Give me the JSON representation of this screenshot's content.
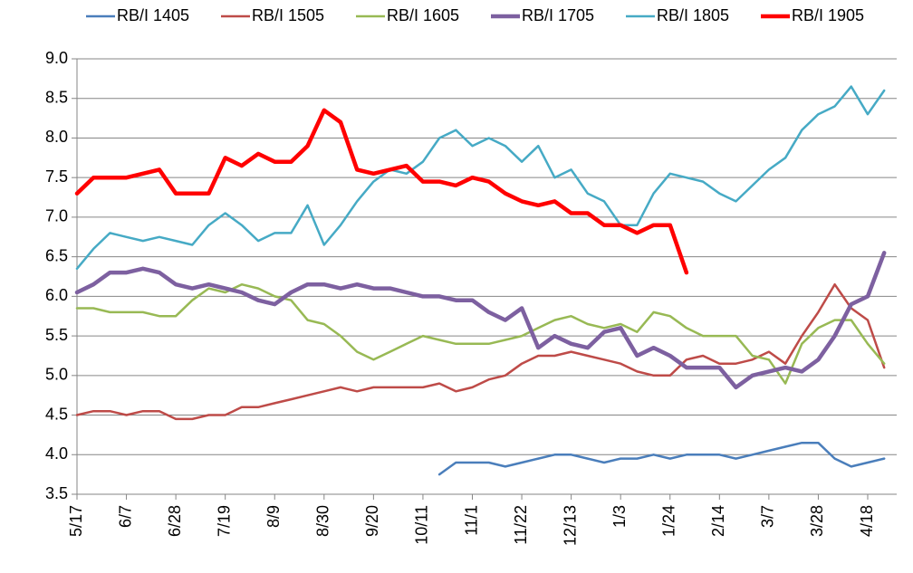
{
  "chart_data": {
    "type": "line",
    "categories": [
      "5/17",
      null,
      null,
      "6/7",
      null,
      null,
      "6/28",
      null,
      null,
      "7/19",
      null,
      null,
      "8/9",
      null,
      null,
      "8/30",
      null,
      null,
      "9/20",
      null,
      null,
      "10/11",
      null,
      null,
      "11/1",
      null,
      null,
      "11/22",
      null,
      null,
      "12/13",
      null,
      null,
      "1/3",
      null,
      null,
      "1/24",
      null,
      null,
      "2/14",
      null,
      null,
      "3/7",
      null,
      null,
      "3/28",
      null,
      null,
      "4/18",
      null
    ],
    "ylim": [
      3.5,
      9.0
    ],
    "yticks": [
      3.5,
      {
        "value": 4,
        "label": "4.0"
      },
      4.5,
      {
        "value": 5,
        "label": "5.0"
      },
      5.5,
      {
        "value": 6,
        "label": "6.0"
      },
      6.5,
      {
        "value": 7,
        "label": "7.0"
      },
      7.5,
      {
        "value": 8,
        "label": "8.0"
      },
      8.5,
      {
        "value": 9,
        "label": "9.0"
      }
    ],
    "grid": true,
    "legend": "top",
    "series": [
      {
        "name": "RB/I 1405",
        "color": "#4a7ebb",
        "line_width": 2.5,
        "values": [
          null,
          null,
          null,
          null,
          null,
          null,
          null,
          null,
          null,
          null,
          null,
          null,
          null,
          null,
          null,
          null,
          null,
          null,
          null,
          null,
          null,
          null,
          3.75,
          3.9,
          3.9,
          3.9,
          3.85,
          3.9,
          3.95,
          4.0,
          4.0,
          3.95,
          3.9,
          3.95,
          3.95,
          4.0,
          3.95,
          4.0,
          4.0,
          4.0,
          3.95,
          4.0,
          4.05,
          4.1,
          4.15,
          4.15,
          3.95,
          3.85,
          3.9,
          3.95
        ]
      },
      {
        "name": "RB/I 1505",
        "color": "#be4b48",
        "line_width": 2.5,
        "values": [
          4.5,
          4.55,
          4.55,
          4.5,
          4.55,
          4.55,
          4.45,
          4.45,
          4.5,
          4.5,
          4.6,
          4.6,
          4.65,
          4.7,
          4.75,
          4.8,
          4.85,
          4.8,
          4.85,
          4.85,
          4.85,
          4.85,
          4.9,
          4.8,
          4.85,
          4.95,
          5.0,
          5.15,
          5.25,
          5.25,
          5.3,
          5.25,
          5.2,
          5.15,
          5.05,
          5.0,
          5.0,
          5.2,
          5.25,
          5.15,
          5.15,
          5.2,
          5.3,
          5.15,
          5.5,
          5.8,
          6.15,
          5.85,
          5.7,
          5.1
        ]
      },
      {
        "name": "RB/I 1605",
        "color": "#98b954",
        "line_width": 2.5,
        "values": [
          5.85,
          5.85,
          5.8,
          5.8,
          5.8,
          5.75,
          5.75,
          5.95,
          6.1,
          6.05,
          6.15,
          6.1,
          6.0,
          5.95,
          5.7,
          5.65,
          5.5,
          5.3,
          5.2,
          5.3,
          5.4,
          5.5,
          5.45,
          5.4,
          5.4,
          5.4,
          5.45,
          5.5,
          5.6,
          5.7,
          5.75,
          5.65,
          5.6,
          5.65,
          5.55,
          5.8,
          5.75,
          5.6,
          5.5,
          5.5,
          5.5,
          5.25,
          5.2,
          4.9,
          5.4,
          5.6,
          5.7,
          5.7,
          5.4,
          5.15
        ]
      },
      {
        "name": "RB/I 1705",
        "color": "#7d60a0",
        "line_width": 4.5,
        "values": [
          6.05,
          6.15,
          6.3,
          6.3,
          6.35,
          6.3,
          6.15,
          6.1,
          6.15,
          6.1,
          6.05,
          5.95,
          5.9,
          6.05,
          6.15,
          6.15,
          6.1,
          6.15,
          6.1,
          6.1,
          6.05,
          6.0,
          6.0,
          5.95,
          5.95,
          5.8,
          5.7,
          5.85,
          5.35,
          5.5,
          5.4,
          5.35,
          5.55,
          5.6,
          5.25,
          5.35,
          5.25,
          5.1,
          5.1,
          5.1,
          4.85,
          5.0,
          5.05,
          5.1,
          5.05,
          5.2,
          5.5,
          5.9,
          6.0,
          6.55
        ]
      },
      {
        "name": "RB/I 1805",
        "color": "#46aac5",
        "line_width": 2.5,
        "values": [
          6.35,
          6.6,
          6.8,
          6.75,
          6.7,
          6.75,
          6.7,
          6.65,
          6.9,
          7.05,
          6.9,
          6.7,
          6.8,
          6.8,
          7.15,
          6.65,
          6.9,
          7.2,
          7.45,
          7.6,
          7.55,
          7.7,
          8.0,
          8.1,
          7.9,
          8.0,
          7.9,
          7.7,
          7.9,
          7.5,
          7.6,
          7.3,
          7.2,
          6.9,
          6.9,
          7.3,
          7.55,
          7.5,
          7.45,
          7.3,
          7.2,
          7.4,
          7.6,
          7.75,
          8.1,
          8.3,
          8.4,
          8.65,
          8.3,
          8.6
        ]
      },
      {
        "name": "RB/I 1905",
        "color": "#ff0000",
        "line_width": 4.5,
        "values": [
          7.3,
          7.5,
          7.5,
          7.5,
          7.55,
          7.6,
          7.3,
          7.3,
          7.3,
          7.75,
          7.65,
          7.8,
          7.7,
          7.7,
          7.9,
          8.35,
          8.2,
          7.6,
          7.55,
          7.6,
          7.65,
          7.45,
          7.45,
          7.4,
          7.5,
          7.45,
          7.3,
          7.2,
          7.15,
          7.2,
          7.05,
          7.05,
          6.9,
          6.9,
          6.8,
          6.9,
          6.9,
          6.3,
          null,
          null,
          null,
          null,
          null,
          null,
          null,
          null,
          null,
          null,
          null,
          null
        ]
      }
    ]
  }
}
